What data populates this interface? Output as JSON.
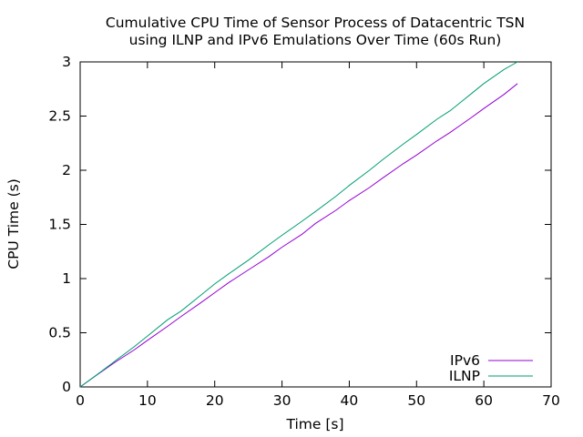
{
  "chart_data": {
    "type": "line",
    "title_line1": "Cumulative CPU Time of Sensor Process of Datacentric TSN",
    "title_line2": "using ILNP and IPv6 Emulations Over Time (60s Run)",
    "xlabel": "Time [s]",
    "ylabel": "CPU Time (s)",
    "xlim": [
      0,
      70
    ],
    "ylim": [
      0,
      3
    ],
    "xticks": [
      0,
      10,
      20,
      30,
      40,
      50,
      60,
      70
    ],
    "yticks": [
      0,
      0.5,
      1,
      1.5,
      2,
      2.5,
      3
    ],
    "ytick_labels": [
      "0",
      "0.5",
      "1",
      "1.5",
      "2",
      "2.5",
      "3"
    ],
    "grid": false,
    "legend_position": "bottom-right",
    "series": [
      {
        "name": "IPv6",
        "color": "#9400d3",
        "x": [
          0,
          2,
          5,
          8,
          10,
          13,
          15,
          18,
          20,
          22,
          25,
          28,
          30,
          33,
          35,
          38,
          40,
          43,
          45,
          48,
          50,
          53,
          55,
          58,
          60,
          63,
          65
        ],
        "y": [
          0,
          0.09,
          0.22,
          0.34,
          0.43,
          0.56,
          0.65,
          0.78,
          0.87,
          0.96,
          1.08,
          1.2,
          1.29,
          1.41,
          1.51,
          1.63,
          1.72,
          1.84,
          1.93,
          2.06,
          2.14,
          2.27,
          2.35,
          2.48,
          2.57,
          2.7,
          2.8
        ]
      },
      {
        "name": "ILNP",
        "color": "#009e73",
        "x": [
          0,
          2,
          5,
          8,
          10,
          13,
          15,
          18,
          20,
          22,
          25,
          28,
          30,
          33,
          35,
          38,
          40,
          43,
          45,
          48,
          50,
          53,
          55,
          58,
          60,
          63,
          65
        ],
        "y": [
          0,
          0.09,
          0.23,
          0.37,
          0.47,
          0.62,
          0.7,
          0.85,
          0.95,
          1.04,
          1.17,
          1.31,
          1.4,
          1.53,
          1.62,
          1.76,
          1.86,
          2.0,
          2.1,
          2.24,
          2.33,
          2.47,
          2.55,
          2.7,
          2.8,
          2.93,
          3.0
        ]
      }
    ]
  }
}
